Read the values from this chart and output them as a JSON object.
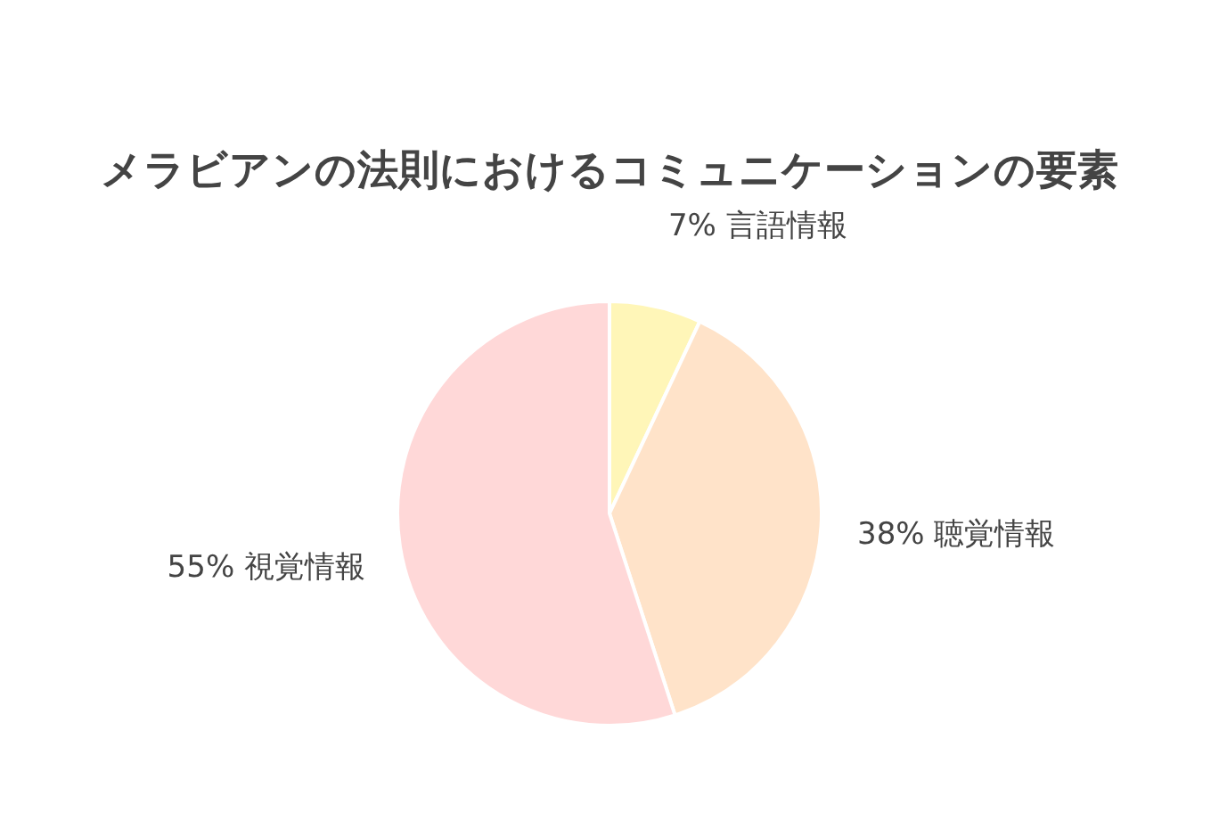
{
  "chart_data": {
    "type": "pie",
    "title": "メラビアンの法則におけるコミュニケーションの要素",
    "categories": [
      "言語情報",
      "聴覚情報",
      "視覚情報"
    ],
    "values": [
      7,
      38,
      55
    ],
    "value_labels": [
      "7%",
      "38%",
      "55%"
    ],
    "colors": [
      "#fff6b8",
      "#ffe3c9",
      "#ffd8d8"
    ]
  }
}
